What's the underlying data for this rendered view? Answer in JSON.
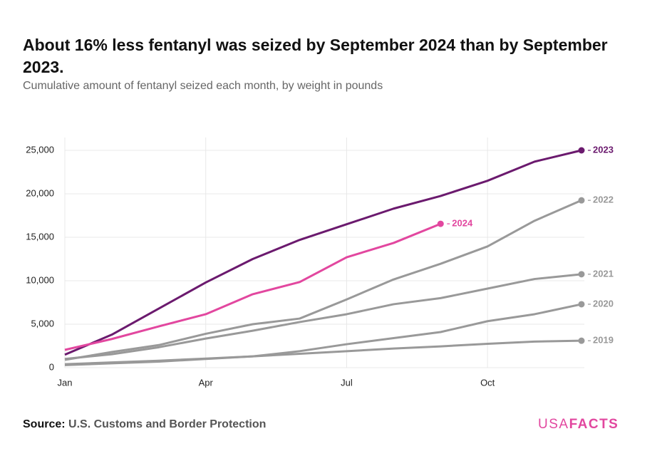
{
  "chart_data": {
    "type": "line",
    "title": "About 16% less fentanyl was seized by September 2024 than by September 2023.",
    "subtitle": "Cumulative amount of fentanyl seized each month, by weight in pounds",
    "source_label": "Source:",
    "source": "U.S. Customs and Border Protection",
    "logo": [
      "USA",
      "FACTS"
    ],
    "categories": [
      "Jan",
      null,
      null,
      "Apr",
      null,
      null,
      "Jul",
      null,
      null,
      "Oct",
      null,
      null
    ],
    "ylim": [
      0,
      25000
    ],
    "yticks": [
      0,
      {
        "value": 5000,
        "label": "5,000"
      },
      {
        "value": 10000,
        "label": "10,000"
      },
      {
        "value": 15000,
        "label": "15,000"
      },
      {
        "value": 20000,
        "label": "20,000"
      },
      {
        "value": 25000,
        "label": "25,000"
      }
    ],
    "grid": true,
    "series": [
      {
        "name": "2019",
        "color": "#999999",
        "values": [
          300,
          500,
          700,
          1000,
          1300,
          1600,
          1900,
          2200,
          2450,
          2750,
          3000,
          3100
        ]
      },
      {
        "name": "2020",
        "color": "#999999",
        "values": [
          400,
          600,
          800,
          1050,
          1300,
          1900,
          2700,
          3400,
          4100,
          5350,
          6150,
          7300
        ]
      },
      {
        "name": "2021",
        "color": "#999999",
        "values": [
          1000,
          1550,
          2350,
          3350,
          4250,
          5250,
          6150,
          7300,
          8000,
          9100,
          10200,
          10750
        ]
      },
      {
        "name": "2022",
        "color": "#999999",
        "values": [
          900,
          1800,
          2600,
          3900,
          5000,
          5650,
          7850,
          10150,
          11950,
          13950,
          16900,
          19250
        ]
      },
      {
        "name": "2023",
        "color": "#6b1a6e",
        "values": [
          1500,
          3800,
          6800,
          9800,
          12500,
          14700,
          16500,
          18300,
          19750,
          21500,
          23700,
          25000
        ]
      },
      {
        "name": "2024",
        "color": "#e2479f",
        "values": [
          2050,
          3300,
          4750,
          6150,
          8450,
          9850,
          12700,
          14350,
          16550,
          null,
          null,
          null
        ]
      }
    ]
  }
}
